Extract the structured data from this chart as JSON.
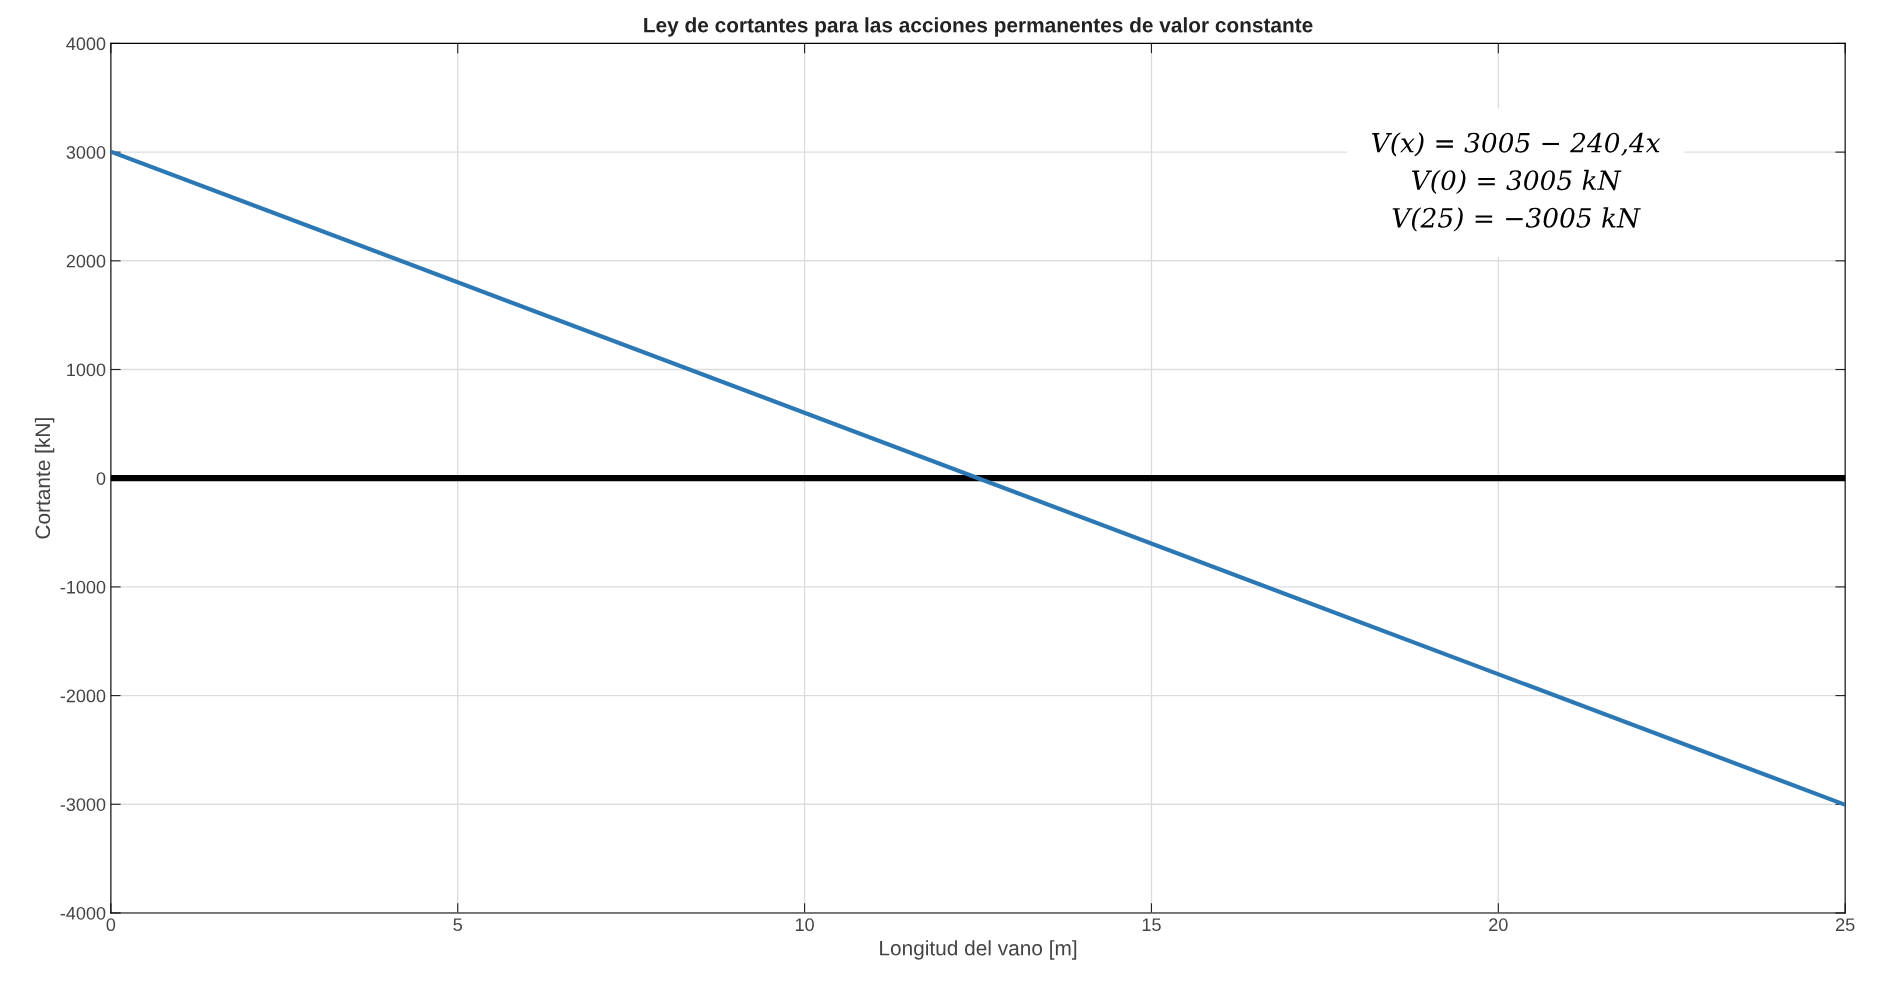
{
  "chart_data": {
    "type": "line",
    "title": "Ley de cortantes para las acciones permanentes de valor constante",
    "xlabel": "Longitud del vano [m]",
    "ylabel": "Cortante [kN]",
    "x": [
      0,
      25
    ],
    "series": [
      {
        "color": "#2b78b4",
        "values": [
          3005,
          -3005
        ]
      }
    ],
    "xlim": [
      0,
      25
    ],
    "xticks": [
      0,
      5,
      10,
      15,
      20,
      25
    ],
    "ylim": [
      -4000,
      4000
    ],
    "yticks": [
      -4000,
      -3000,
      -2000,
      -1000,
      0,
      1000,
      2000,
      3000,
      4000
    ],
    "ref_lines": [
      {
        "axis": "y",
        "value": 0,
        "color": "#000000"
      }
    ],
    "annotations": [
      "V(x) = 3005 − 240,4x",
      "V(0) = 3005 kN",
      "V(25) = −3005 kN"
    ],
    "grid": true,
    "legend": false,
    "marker": "none",
    "line_style": "solid"
  }
}
